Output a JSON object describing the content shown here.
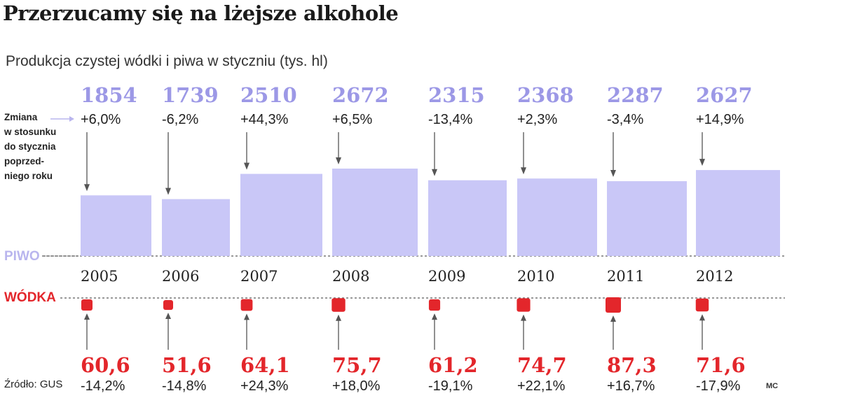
{
  "title": "Przerzucamy się na lżejsze alkohole",
  "subtitle": "Produkcja czystej wódki  i piwa w styczniu (tys. hl)",
  "note": "Zmiana\nw stosunku\ndo stycznia\npoprzed-\nniego roku",
  "source": "Źródło: GUS",
  "author": "MC",
  "colors": {
    "beer": "#c9c7f7",
    "beer_text": "#9c98e6",
    "vodka": "#e3262b",
    "axis": "#777777"
  },
  "chart_data": {
    "type": "bar",
    "categories": [
      "2005",
      "2006",
      "2007",
      "2008",
      "2009",
      "2010",
      "2011",
      "2012"
    ],
    "series": [
      {
        "name": "PIWO",
        "values": [
          1854,
          1739,
          2510,
          2672,
          2315,
          2368,
          2287,
          2627
        ],
        "value_labels": [
          "1854",
          "1739",
          "2510",
          "2672",
          "2315",
          "2368",
          "2287",
          "2627"
        ],
        "change_labels": [
          "+6,0%",
          "-6,2%",
          "+44,3%",
          "+6,5%",
          "-13,4%",
          "+2,3%",
          "-3,4%",
          "+14,9%"
        ],
        "color": "#c9c7f7"
      },
      {
        "name": "WÓDKA",
        "values": [
          60.6,
          51.6,
          64.1,
          75.7,
          61.2,
          74.7,
          87.3,
          71.6
        ],
        "value_labels": [
          "60,6",
          "51,6",
          "64,1",
          "75,7",
          "61,2",
          "74,7",
          "87,3",
          "71,6"
        ],
        "change_labels": [
          "-14,2%",
          "-14,8%",
          "+24,3%",
          "+18,0%",
          "-19,1%",
          "+22,1%",
          "+16,7%",
          "-17,9%"
        ],
        "color": "#e3262b"
      }
    ],
    "legend": "none",
    "grid": false
  }
}
